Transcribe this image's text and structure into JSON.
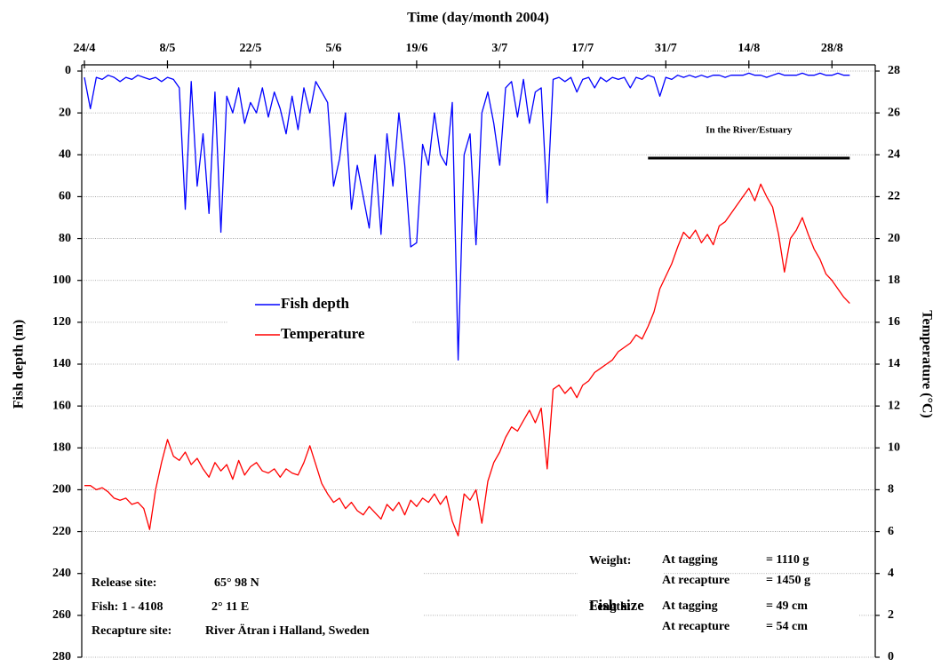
{
  "chart_data": {
    "type": "line",
    "title": "Time (day/month 2004)",
    "y_label": "Fish depth (m)",
    "y2_label": "Temperature (°C)",
    "x": [
      "24/4",
      "25/4",
      "26/4",
      "27/4",
      "28/4",
      "29/4",
      "30/4",
      "1/5",
      "2/5",
      "3/5",
      "4/5",
      "5/5",
      "6/5",
      "7/5",
      "8/5",
      "9/5",
      "10/5",
      "11/5",
      "12/5",
      "13/5",
      "14/5",
      "15/5",
      "16/5",
      "17/5",
      "18/5",
      "19/5",
      "20/5",
      "21/5",
      "22/5",
      "23/5",
      "24/5",
      "25/5",
      "26/5",
      "27/5",
      "28/5",
      "29/5",
      "30/5",
      "31/5",
      "1/6",
      "2/6",
      "3/6",
      "4/6",
      "5/6",
      "6/6",
      "7/6",
      "8/6",
      "9/6",
      "10/6",
      "11/6",
      "12/6",
      "13/6",
      "14/6",
      "15/6",
      "16/6",
      "17/6",
      "18/6",
      "19/6",
      "20/6",
      "21/6",
      "22/6",
      "23/6",
      "24/6",
      "25/6",
      "26/6",
      "27/6",
      "28/6",
      "29/6",
      "30/6",
      "1/7",
      "2/7",
      "3/7",
      "4/7",
      "5/7",
      "6/7",
      "7/7",
      "8/7",
      "9/7",
      "10/7",
      "11/7",
      "12/7",
      "13/7",
      "14/7",
      "15/7",
      "16/7",
      "17/7",
      "18/7",
      "19/7",
      "20/7",
      "21/7",
      "22/7",
      "23/7",
      "24/7",
      "25/7",
      "26/7",
      "27/7",
      "28/7",
      "29/7",
      "30/7",
      "31/7",
      "1/8",
      "2/8",
      "3/8",
      "4/8",
      "5/8",
      "6/8",
      "7/8",
      "8/8",
      "9/8",
      "10/8",
      "11/8",
      "12/8",
      "13/8",
      "14/8",
      "15/8",
      "16/8",
      "17/8",
      "18/8",
      "19/8",
      "20/8",
      "21/8",
      "22/8",
      "23/8",
      "24/8",
      "25/8",
      "26/8",
      "27/8",
      "28/8",
      "29/8",
      "30/8",
      "31/8"
    ],
    "xlim": [
      "24/4",
      "4/9"
    ],
    "xticks": [
      "24/4",
      "8/5",
      "22/5",
      "5/6",
      "19/6",
      "3/7",
      "17/7",
      "31/7",
      "14/8",
      "28/8"
    ],
    "ylim": [
      0,
      280
    ],
    "y_inverted": true,
    "yticks": [
      0,
      20,
      40,
      60,
      80,
      100,
      120,
      140,
      160,
      180,
      200,
      220,
      240,
      260,
      280
    ],
    "y2lim": [
      0,
      28
    ],
    "y2ticks": [
      0,
      2,
      4,
      6,
      8,
      10,
      12,
      14,
      16,
      18,
      20,
      22,
      24,
      26,
      28
    ],
    "grid": true,
    "legend": "left",
    "series": [
      {
        "name": "Fish depth",
        "color": "#0000ff",
        "values": [
          3,
          18,
          3,
          4,
          2,
          3,
          5,
          3,
          4,
          2,
          3,
          4,
          3,
          5,
          3,
          4,
          8,
          66,
          5,
          55,
          30,
          68,
          10,
          77,
          12,
          20,
          8,
          25,
          15,
          20,
          8,
          22,
          10,
          18,
          30,
          12,
          28,
          8,
          20,
          5,
          10,
          15,
          55,
          42,
          20,
          66,
          45,
          60,
          75,
          40,
          78,
          30,
          55,
          20,
          45,
          84,
          82,
          35,
          45,
          20,
          40,
          45,
          15,
          138,
          40,
          30,
          83,
          20,
          10,
          25,
          45,
          8,
          5,
          22,
          4,
          25,
          10,
          8,
          63,
          4,
          3,
          5,
          3,
          10,
          4,
          3,
          8,
          3,
          5,
          3,
          4,
          3,
          8,
          3,
          4,
          2,
          3,
          12,
          3,
          4,
          2,
          3,
          2,
          3,
          2,
          3,
          2,
          2,
          3,
          2,
          2,
          2,
          1,
          2,
          2,
          3,
          2,
          1,
          2,
          2,
          2,
          1,
          2,
          2,
          1,
          2,
          2,
          1,
          2,
          2
        ]
      },
      {
        "name": "Temperature",
        "color": "#ff0000",
        "axis": "y2",
        "values": [
          8.2,
          8.2,
          8.0,
          8.1,
          7.9,
          7.6,
          7.5,
          7.6,
          7.3,
          7.4,
          7.1,
          6.1,
          8.0,
          9.3,
          10.4,
          9.6,
          9.4,
          9.8,
          9.2,
          9.5,
          9.0,
          8.6,
          9.3,
          8.9,
          9.2,
          8.5,
          9.4,
          8.7,
          9.1,
          9.3,
          8.9,
          8.8,
          9.0,
          8.6,
          9.0,
          8.8,
          8.7,
          9.3,
          10.1,
          9.2,
          8.3,
          7.8,
          7.4,
          7.6,
          7.1,
          7.4,
          7.0,
          6.8,
          7.2,
          6.9,
          6.6,
          7.3,
          7.0,
          7.4,
          6.8,
          7.5,
          7.2,
          7.6,
          7.4,
          7.8,
          7.3,
          7.7,
          6.5,
          5.8,
          7.8,
          7.5,
          8.0,
          6.4,
          8.4,
          9.3,
          9.8,
          10.5,
          11.0,
          10.8,
          11.3,
          11.8,
          11.2,
          11.9,
          9.0,
          12.8,
          13.0,
          12.6,
          12.9,
          12.4,
          13.0,
          13.2,
          13.6,
          13.8,
          14.0,
          14.2,
          14.6,
          14.8,
          15.0,
          15.4,
          15.2,
          15.8,
          16.5,
          17.6,
          18.2,
          18.8,
          19.6,
          20.3,
          20.0,
          20.4,
          19.8,
          20.2,
          19.7,
          20.6,
          20.8,
          21.2,
          21.6,
          22.0,
          22.4,
          21.8,
          22.6,
          22.0,
          21.5,
          20.2,
          18.4,
          20.0,
          20.4,
          21.0,
          20.2,
          19.5,
          19.0,
          18.3,
          18.0,
          17.6,
          17.2,
          16.9
        ]
      }
    ],
    "annotations": [
      {
        "text": "In the River/Estuary",
        "from": "28/7",
        "to": "31/8"
      }
    ],
    "release_box": [
      [
        "Release site:",
        "65° 98  N"
      ],
      [
        "Fish: 1 - 4108",
        "2° 11  E"
      ],
      [
        "Recapture site:",
        "River Ätran i Halland, Sweden"
      ]
    ],
    "size_box": {
      "title": "Fish size",
      "groups": [
        {
          "label": "Weight:",
          "rows": [
            [
              "At tagging",
              "= 1110 g"
            ],
            [
              "At recapture",
              "= 1450 g"
            ]
          ]
        },
        {
          "label": "Length:",
          "rows": [
            [
              "At tagging",
              "=  49 cm"
            ],
            [
              "At recapture",
              "=  54 cm"
            ]
          ]
        }
      ]
    }
  }
}
